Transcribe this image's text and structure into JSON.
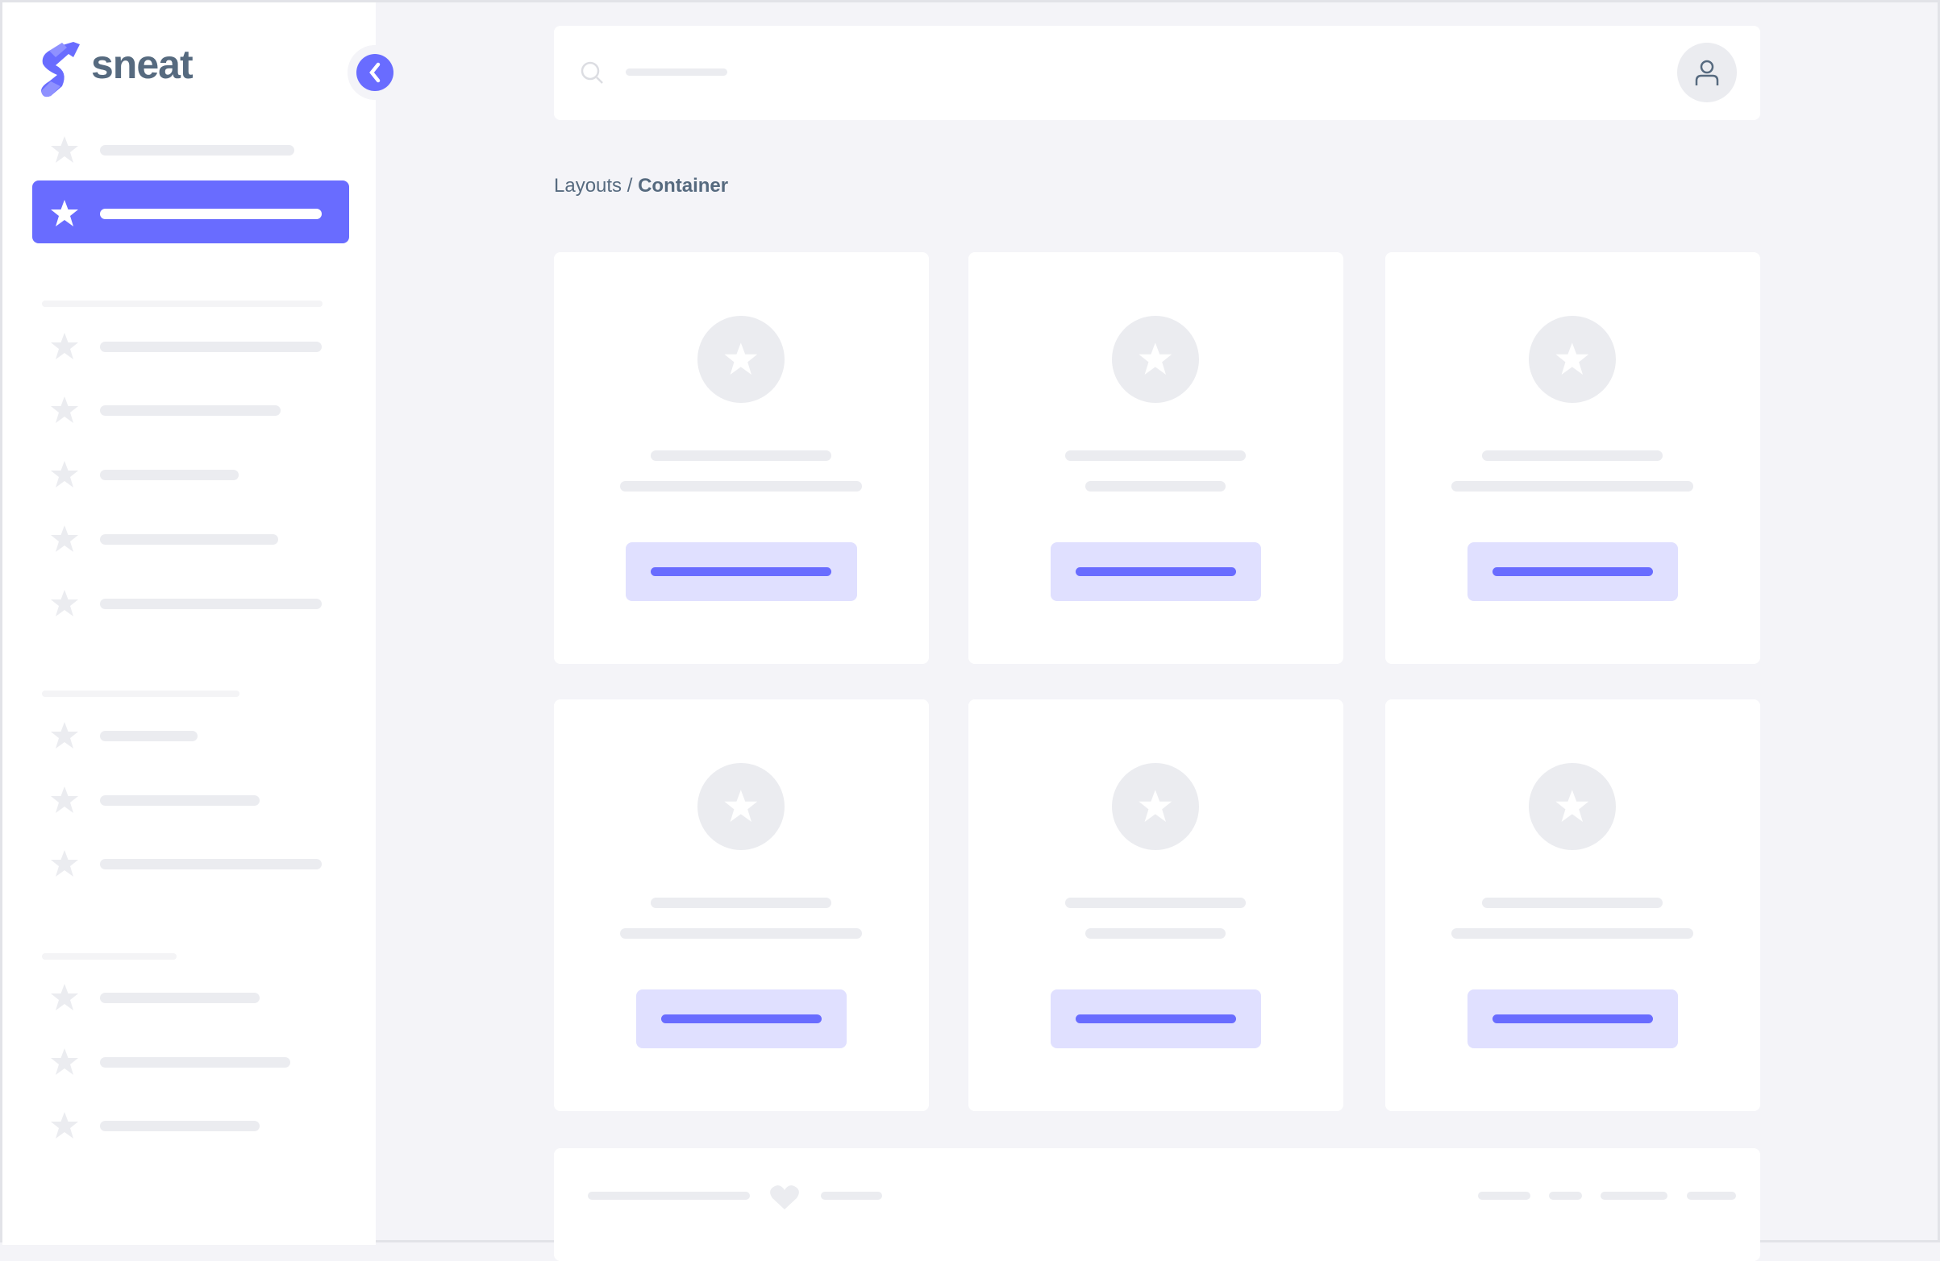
{
  "brand": {
    "name": "sneat",
    "accent": "#696cff",
    "text_color": "#566a7f"
  },
  "breadcrumb": {
    "parent": "Layouts",
    "separator": " / ",
    "current": "Container"
  },
  "icons": {
    "logo": "sneat-logo-icon",
    "collapse": "chevron-left-icon",
    "search": "search-icon",
    "avatar": "user-icon",
    "nav": "star-icon",
    "footer": "heart-icon"
  },
  "sidebar": {
    "active_index": 1,
    "item_count": 12
  },
  "cards": {
    "count": 6
  }
}
